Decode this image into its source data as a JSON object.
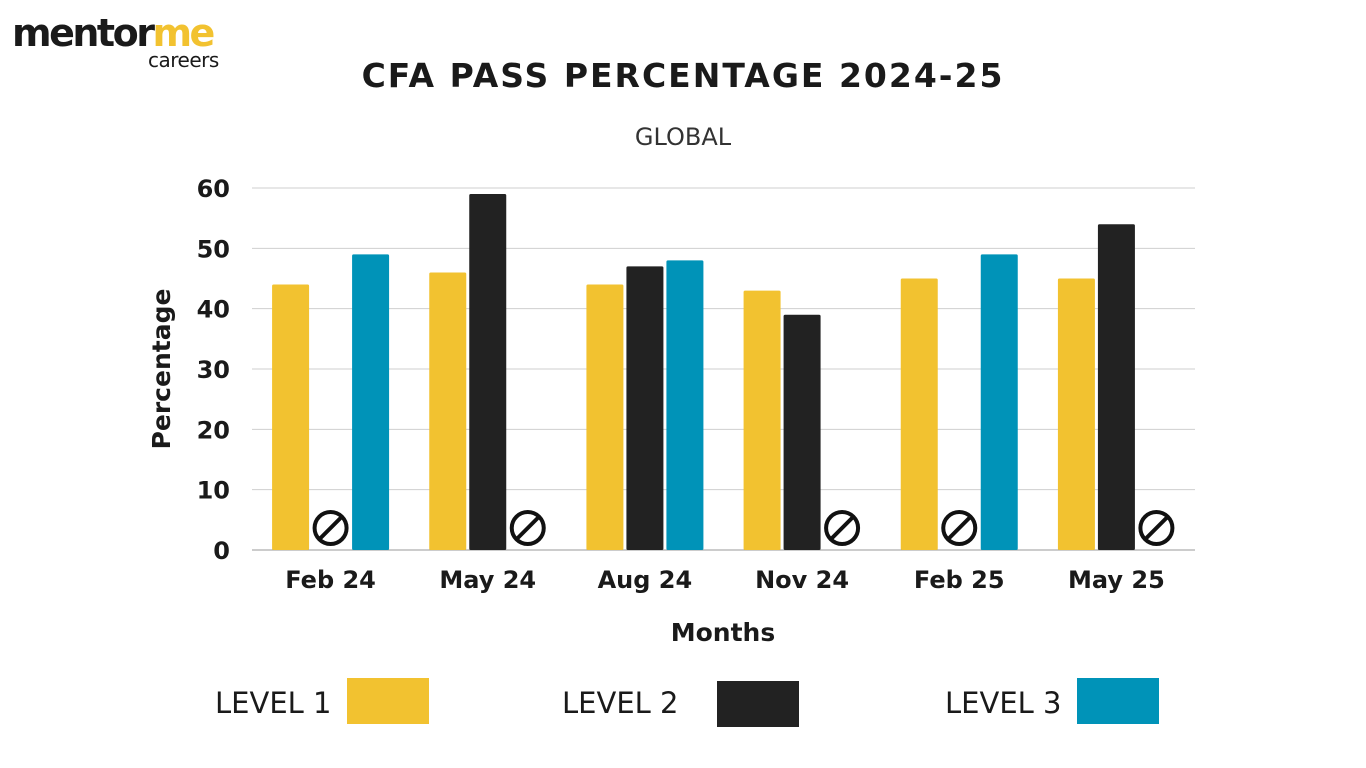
{
  "logo": {
    "main": "mentor",
    "accent": "me",
    "sub": "careers"
  },
  "chart_data": {
    "type": "bar",
    "title": "CFA PASS PERCENTAGE 2024-25",
    "subtitle": "GLOBAL",
    "xlabel": "Months",
    "ylabel": "Percentage",
    "ylim": [
      0,
      60
    ],
    "yticks": [
      0,
      10,
      20,
      30,
      40,
      50,
      60
    ],
    "grid": true,
    "categories": [
      "Feb 24",
      "May 24",
      "Aug 24",
      "Nov 24",
      "Feb 25",
      "May 25"
    ],
    "series": [
      {
        "name": "LEVEL 1",
        "color": "#f2c230",
        "values": [
          44,
          46,
          44,
          43,
          45,
          45
        ]
      },
      {
        "name": "LEVEL 2",
        "color": "#222222",
        "values": [
          null,
          59,
          47,
          39,
          null,
          54
        ]
      },
      {
        "name": "LEVEL 3",
        "color": "#0093b8",
        "values": [
          49,
          null,
          48,
          null,
          49,
          null
        ]
      }
    ],
    "no_exam_marker": "no-exam-icon",
    "legend_position": "bottom"
  }
}
